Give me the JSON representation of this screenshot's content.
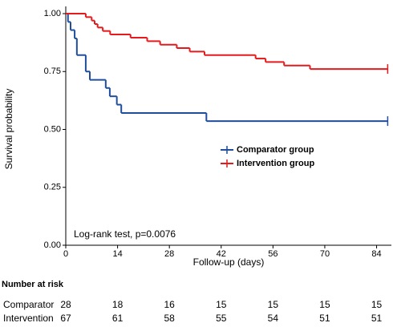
{
  "chart_data": {
    "type": "step",
    "xlabel": "Follow-up (days)",
    "ylabel": "Survival probability",
    "xlim": [
      0,
      88
    ],
    "ylim": [
      0,
      1
    ],
    "xticks": [
      0,
      14,
      28,
      42,
      56,
      70,
      84
    ],
    "yticks": [
      {
        "value": 0,
        "label": "0.00"
      },
      {
        "value": 0.25,
        "label": "0.25"
      },
      {
        "value": 0.5,
        "label": "0.50"
      },
      {
        "value": 0.75,
        "label": "0.75"
      },
      {
        "value": 1,
        "label": "1.00"
      }
    ],
    "annotation": "Log-rank test, p=0.0076",
    "censor_marks": true,
    "series": [
      {
        "name": "Comparator group",
        "color": "#1f4e9c",
        "x": [
          0,
          0.6,
          1.3,
          2.4,
          3,
          5.4,
          6.5,
          10.8,
          11.9,
          13.8,
          15,
          38,
          87
        ],
        "values": [
          1,
          0.964,
          0.929,
          0.893,
          0.821,
          0.75,
          0.714,
          0.679,
          0.643,
          0.607,
          0.571,
          0.536,
          0.536
        ]
      },
      {
        "name": "Intervention group",
        "color": "#e41a1c",
        "x": [
          0,
          5.4,
          7,
          7.8,
          8.6,
          10,
          12,
          17.5,
          22,
          25.5,
          30,
          33.5,
          37.5,
          51.3,
          54,
          59,
          66,
          87
        ],
        "values": [
          1,
          0.985,
          0.97,
          0.955,
          0.94,
          0.925,
          0.91,
          0.896,
          0.881,
          0.866,
          0.851,
          0.836,
          0.821,
          0.806,
          0.791,
          0.776,
          0.761,
          0.761
        ]
      }
    ],
    "risk_table": {
      "title": "Number at risk",
      "rows": [
        {
          "name": "Comparator",
          "counts": [
            28,
            18,
            16,
            15,
            15,
            15,
            15
          ]
        },
        {
          "name": "Intervention",
          "counts": [
            67,
            61,
            58,
            55,
            54,
            51,
            51
          ]
        }
      ]
    }
  }
}
